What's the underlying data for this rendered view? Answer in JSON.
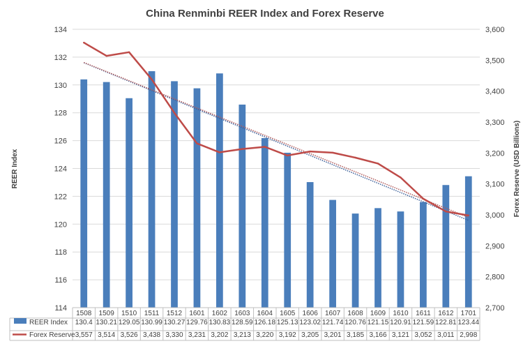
{
  "chart_data": {
    "type": "bar",
    "title": "China Renminbi REER Index and Forex Reserve",
    "ylabel_left": "REER Index",
    "ylabel_right": "Forex Reserve (USD Billions)",
    "ylim_left": [
      114,
      134
    ],
    "yticks_left": [
      "114",
      "116",
      "118",
      "120",
      "122",
      "124",
      "126",
      "128",
      "130",
      "132",
      "134"
    ],
    "ylim_right": [
      2700,
      3600
    ],
    "yticks_right": [
      "2,700",
      "2,800",
      "2,900",
      "3,000",
      "3,100",
      "3,200",
      "3,300",
      "3,400",
      "3,500",
      "3,600"
    ],
    "categories": [
      "1508",
      "1509",
      "1510",
      "1511",
      "1512",
      "1601",
      "1602",
      "1603",
      "1604",
      "1605",
      "1606",
      "1607",
      "1608",
      "1609",
      "1610",
      "1611",
      "1612",
      "1701"
    ],
    "series": [
      {
        "name": "REER Index",
        "type": "bar",
        "axis": "left",
        "color": "#4a7ebb",
        "values": [
          130.4,
          130.21,
          129.05,
          130.99,
          130.27,
          129.76,
          130.83,
          128.59,
          126.18,
          125.13,
          123.02,
          121.74,
          120.76,
          121.15,
          120.91,
          121.59,
          122.81,
          123.44
        ],
        "labels": [
          "130.4",
          "130.21",
          "129.05",
          "130.99",
          "130.27",
          "129.76",
          "130.83",
          "128.59",
          "126.18",
          "125.13",
          "123.02",
          "121.74",
          "120.76",
          "121.15",
          "120.91",
          "121.59",
          "122.81",
          "123.44"
        ],
        "trend_color": "#3b5f99"
      },
      {
        "name": "Forex Reserve",
        "type": "line",
        "axis": "right",
        "color": "#be4b48",
        "values": [
          3557,
          3514,
          3526,
          3438,
          3330,
          3231,
          3202,
          3213,
          3220,
          3192,
          3205,
          3201,
          3185,
          3166,
          3121,
          3052,
          3011,
          2998
        ],
        "labels": [
          "3,557",
          "3,514",
          "3,526",
          "3,438",
          "3,330",
          "3,231",
          "3,202",
          "3,213",
          "3,220",
          "3,192",
          "3,205",
          "3,201",
          "3,185",
          "3,166",
          "3,121",
          "3,052",
          "3,011",
          "2,998"
        ],
        "trend_color": "#b05a5a"
      }
    ],
    "grid": "horizontal",
    "legend": "data-table"
  }
}
